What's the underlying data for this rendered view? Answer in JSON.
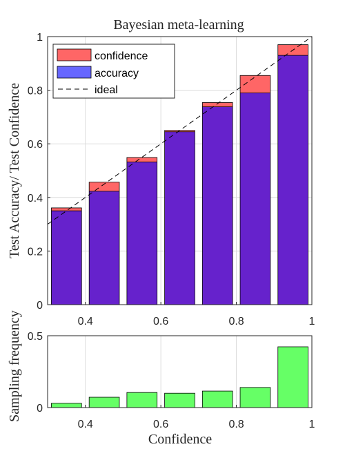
{
  "chart_data": [
    {
      "type": "bar",
      "title": "Bayesian meta-learning",
      "ylabel": "Test Accuracy/ Test Confidence",
      "xlim": [
        0.3,
        1.0
      ],
      "ylim": [
        0,
        1
      ],
      "xticks": [
        0.4,
        0.6,
        0.8,
        1
      ],
      "xtick_labels": [
        "0.4",
        "0.6",
        "0.8",
        "1"
      ],
      "yticks": [
        0,
        0.2,
        0.4,
        0.6,
        0.8,
        1
      ],
      "ytick_labels": [
        "0",
        "0.2",
        "0.4",
        "0.6",
        "0.8",
        "1"
      ],
      "grid": true,
      "legend_position": "top-left",
      "bin_centers": [
        0.35,
        0.45,
        0.55,
        0.65,
        0.75,
        0.85,
        0.95
      ],
      "bar_width": 0.08,
      "series": [
        {
          "name": "confidence",
          "color": "#ff6666",
          "values": [
            0.361,
            0.457,
            0.549,
            0.65,
            0.754,
            0.855,
            0.97
          ]
        },
        {
          "name": "accuracy",
          "color": "#6666ff",
          "values": [
            0.35,
            0.423,
            0.532,
            0.645,
            0.738,
            0.79,
            0.93
          ]
        }
      ],
      "overlap_color": "#6622cc",
      "reference_line": {
        "name": "ideal",
        "from": [
          0.3,
          0.3
        ],
        "to": [
          1.0,
          1.0
        ],
        "style": "dashed"
      }
    },
    {
      "type": "bar",
      "xlabel": "Confidence",
      "ylabel": "Sampling frequency",
      "xlim": [
        0.3,
        1.0
      ],
      "ylim": [
        0,
        0.5
      ],
      "xticks": [
        0.4,
        0.6,
        0.8,
        1
      ],
      "xtick_labels": [
        "0.4",
        "0.6",
        "0.8",
        "1"
      ],
      "yticks": [
        0,
        0.5
      ],
      "ytick_labels": [
        "0",
        "0.5"
      ],
      "grid": true,
      "bin_centers": [
        0.35,
        0.45,
        0.55,
        0.65,
        0.75,
        0.85,
        0.95
      ],
      "bar_width": 0.08,
      "color": "#66ff66",
      "values": [
        0.03,
        0.072,
        0.105,
        0.1,
        0.115,
        0.14,
        0.423
      ]
    }
  ]
}
